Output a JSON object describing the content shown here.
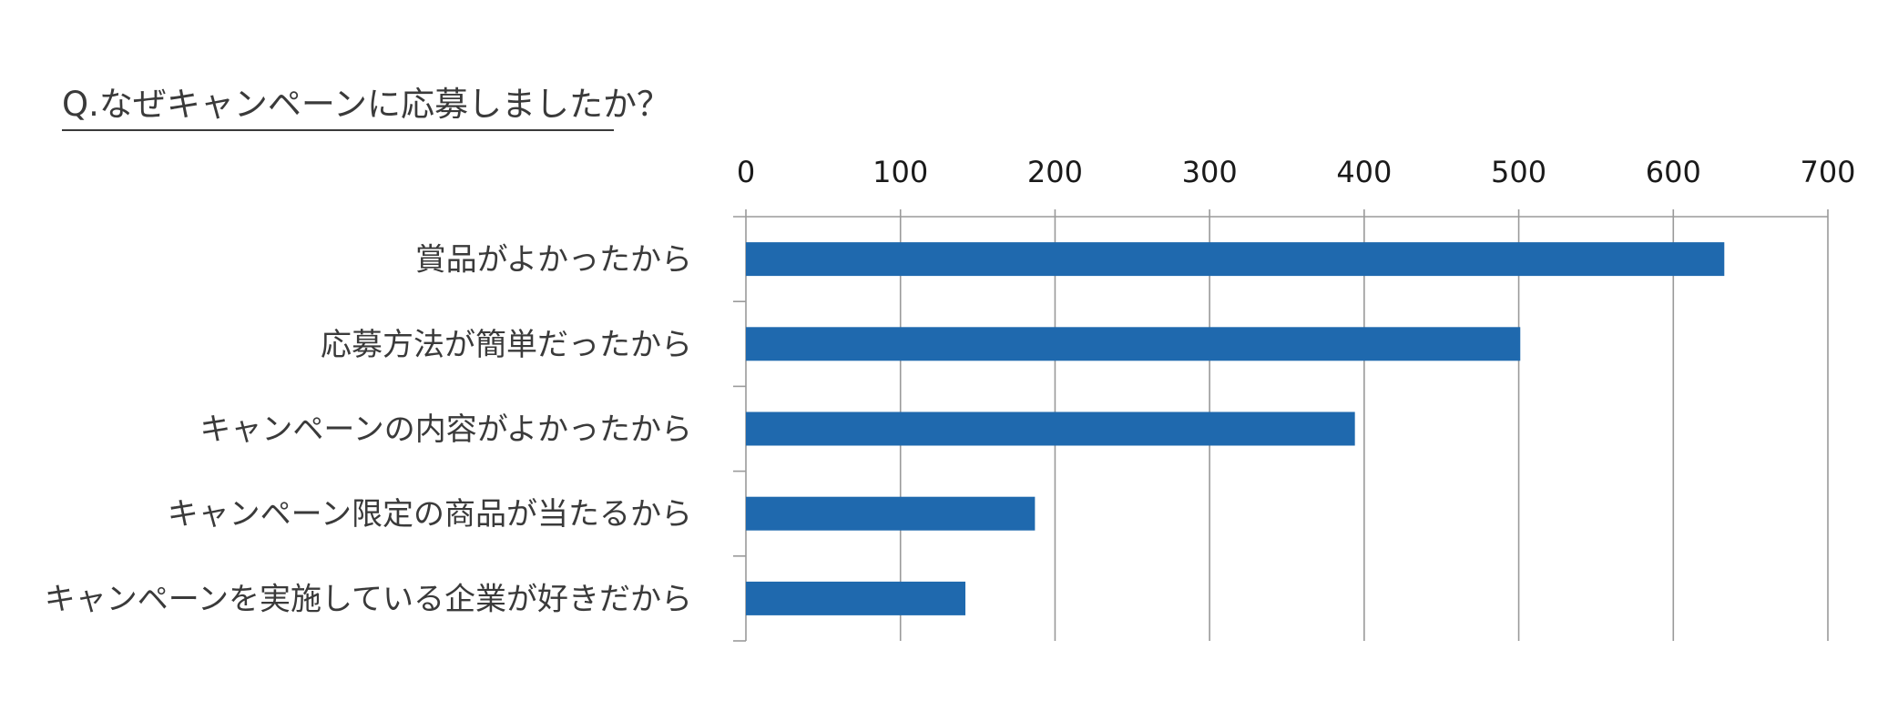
{
  "title": "Q.なぜキャンペーンに応募しましたか？",
  "chart_data": {
    "type": "bar",
    "orientation": "horizontal",
    "title": "Q.なぜキャンペーンに応募しましたか？",
    "categories": [
      "賞品がよかったから",
      "応募方法が簡単だったから",
      "キャンペーンの内容がよかったから",
      "キャンペーン限定の商品が当たるから",
      "キャンペーンを実施している企業が好きだから"
    ],
    "values": [
      633,
      501,
      394,
      187,
      142
    ],
    "xlim": [
      0,
      700
    ],
    "x_ticks": [
      0,
      100,
      200,
      300,
      400,
      500,
      600,
      700
    ],
    "x_tick_labels": [
      "0",
      "100",
      "200",
      "300",
      "400",
      "500",
      "600",
      "700"
    ],
    "x_axis_position": "top",
    "grid": true,
    "legend": "none",
    "bar_color": "#1f69ae",
    "grid_color": "#9a9a9a"
  }
}
